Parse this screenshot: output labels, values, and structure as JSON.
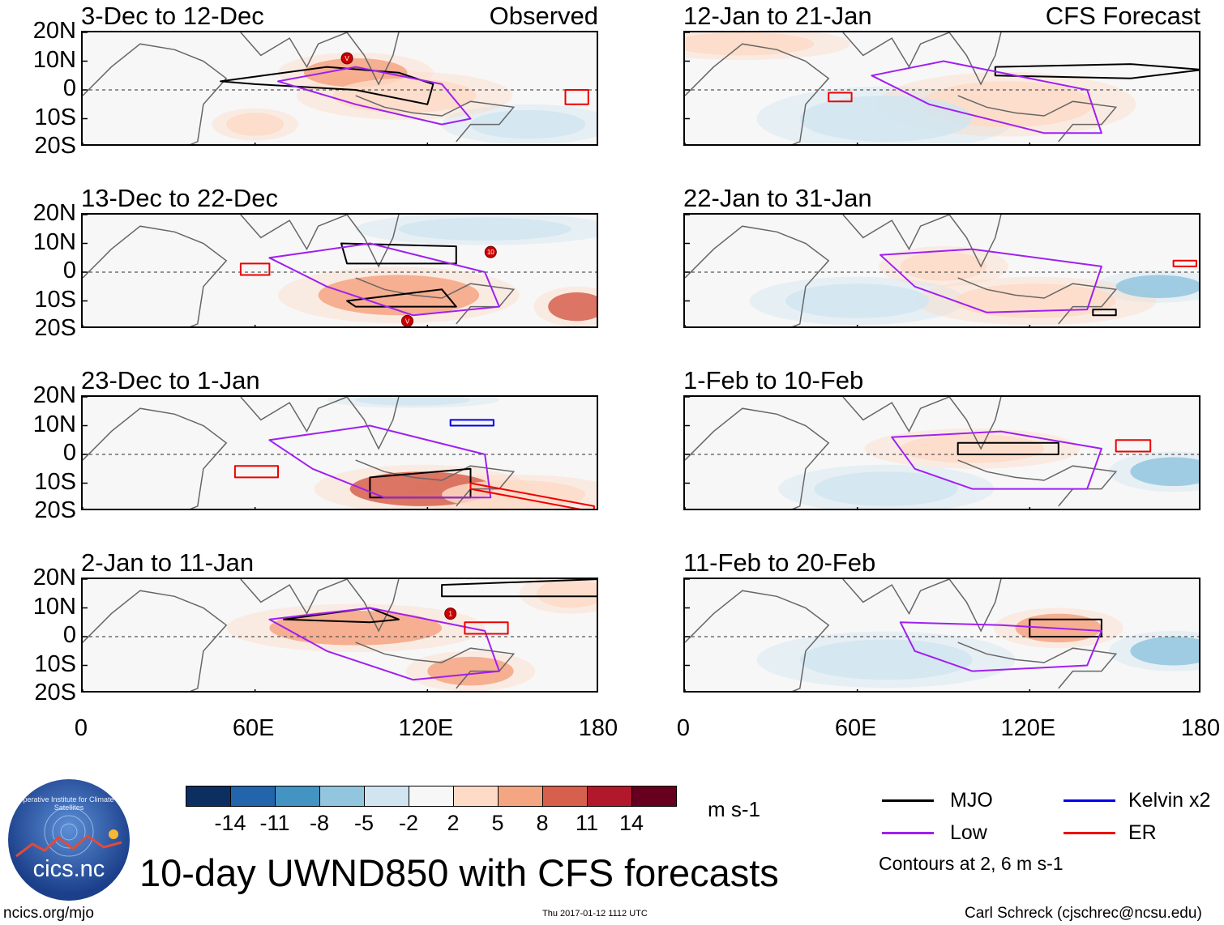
{
  "chart_data": [
    {
      "type": "heatmap",
      "title": "3-Dec to 12-Dec",
      "label": "Observed",
      "column": "left",
      "xlim": [
        0,
        180
      ],
      "ylim": [
        -20,
        20
      ],
      "xticks": [
        "0",
        "60E",
        "120E",
        "180"
      ],
      "yticks": [
        "20N",
        "10N",
        "0",
        "10S",
        "20S"
      ],
      "features": [
        {
          "kind": "positive",
          "lon": 95,
          "lat": 6,
          "rx": 18,
          "ry": 5,
          "v": 8
        },
        {
          "kind": "positive",
          "lon": 112,
          "lat": -2,
          "rx": 25,
          "ry": 6,
          "v": 5
        },
        {
          "kind": "negative",
          "lon": 155,
          "lat": -12,
          "rx": 20,
          "ry": 5,
          "v": -3
        },
        {
          "kind": "positive",
          "lon": 60,
          "lat": -12,
          "rx": 10,
          "ry": 4,
          "v": 3
        }
      ],
      "contours": [
        {
          "name": "MJO",
          "lon": [
            48,
            85,
            110,
            122,
            120,
            95,
            60,
            48
          ],
          "lat": [
            3,
            8,
            6,
            2,
            -5,
            0,
            2,
            3
          ]
        },
        {
          "name": "Low",
          "lon": [
            68,
            95,
            125,
            135,
            125,
            95,
            68
          ],
          "lat": [
            3,
            8,
            2,
            -10,
            -12,
            -5,
            3
          ]
        },
        {
          "name": "ER",
          "lon": [
            168,
            176,
            176,
            168
          ],
          "lat": [
            0,
            0,
            -5,
            -5
          ]
        }
      ],
      "storms": [
        {
          "lon": 92,
          "lat": 11,
          "label": "V"
        }
      ]
    },
    {
      "type": "heatmap",
      "title": "13-Dec to 22-Dec",
      "label": "",
      "column": "left",
      "xlim": [
        0,
        180
      ],
      "ylim": [
        -20,
        20
      ],
      "xticks": [
        "0",
        "60E",
        "120E",
        "180"
      ],
      "yticks": [
        "20N",
        "10N",
        "0",
        "10S",
        "20S"
      ],
      "features": [
        {
          "kind": "positive",
          "lon": 110,
          "lat": -8,
          "rx": 28,
          "ry": 7,
          "v": 8
        },
        {
          "kind": "positive",
          "lon": 172,
          "lat": -12,
          "rx": 10,
          "ry": 5,
          "v": 11
        },
        {
          "kind": "negative",
          "lon": 140,
          "lat": 15,
          "rx": 30,
          "ry": 4,
          "v": -3
        }
      ],
      "contours": [
        {
          "name": "MJO",
          "lon": [
            90,
            130,
            130,
            92,
            90
          ],
          "lat": [
            10,
            9,
            3,
            3,
            10
          ]
        },
        {
          "name": "MJO",
          "lon": [
            92,
            125,
            130,
            95,
            92
          ],
          "lat": [
            -10,
            -6,
            -12,
            -12,
            -10
          ]
        },
        {
          "name": "Low",
          "lon": [
            65,
            100,
            140,
            145,
            115,
            85,
            65
          ],
          "lat": [
            5,
            10,
            0,
            -12,
            -15,
            -5,
            5
          ]
        },
        {
          "name": "ER",
          "lon": [
            55,
            65,
            65,
            55
          ],
          "lat": [
            3,
            3,
            -1,
            -1
          ]
        }
      ],
      "storms": [
        {
          "lon": 142,
          "lat": 7,
          "label": "10"
        },
        {
          "lon": 113,
          "lat": -17,
          "label": "V"
        }
      ]
    },
    {
      "type": "heatmap",
      "title": "23-Dec to 1-Jan",
      "label": "",
      "column": "left",
      "xlim": [
        0,
        180
      ],
      "ylim": [
        -20,
        20
      ],
      "xticks": [
        "0",
        "60E",
        "120E",
        "180"
      ],
      "yticks": [
        "20N",
        "10N",
        "0",
        "10S",
        "20S"
      ],
      "features": [
        {
          "kind": "positive",
          "lon": 118,
          "lat": -12,
          "rx": 25,
          "ry": 6,
          "v": 11
        },
        {
          "kind": "positive",
          "lon": 150,
          "lat": -14,
          "rx": 25,
          "ry": 5,
          "v": 5
        },
        {
          "kind": "negative",
          "lon": 115,
          "lat": 19,
          "rx": 20,
          "ry": 2,
          "v": -3
        }
      ],
      "contours": [
        {
          "name": "MJO",
          "lon": [
            100,
            135,
            135,
            100
          ],
          "lat": [
            -8,
            -5,
            -15,
            -15
          ]
        },
        {
          "name": "Low",
          "lon": [
            65,
            100,
            140,
            142,
            105,
            80,
            65
          ],
          "lat": [
            5,
            10,
            0,
            -15,
            -15,
            -5,
            5
          ]
        },
        {
          "name": "Kelvin x2",
          "lon": [
            128,
            143,
            143,
            128
          ],
          "lat": [
            12,
            12,
            10,
            10
          ]
        },
        {
          "name": "ER",
          "lon": [
            135,
            178,
            178,
            135
          ],
          "lat": [
            -10,
            -18,
            -20,
            -12
          ]
        },
        {
          "name": "ER",
          "lon": [
            53,
            68,
            68,
            53
          ],
          "lat": [
            -4,
            -4,
            -8,
            -8
          ]
        }
      ],
      "storms": []
    },
    {
      "type": "heatmap",
      "title": "2-Jan to 11-Jan",
      "label": "",
      "column": "left",
      "xlim": [
        0,
        180
      ],
      "ylim": [
        -20,
        20
      ],
      "xticks": [
        "0",
        "60E",
        "120E",
        "180"
      ],
      "yticks": [
        "20N",
        "10N",
        "0",
        "10S",
        "20S"
      ],
      "features": [
        {
          "kind": "positive",
          "lon": 95,
          "lat": 3,
          "rx": 30,
          "ry": 6,
          "v": 8
        },
        {
          "kind": "positive",
          "lon": 135,
          "lat": -12,
          "rx": 15,
          "ry": 5,
          "v": 8
        },
        {
          "kind": "positive",
          "lon": 170,
          "lat": 15,
          "rx": 12,
          "ry": 5,
          "v": 5
        }
      ],
      "contours": [
        {
          "name": "MJO",
          "lon": [
            70,
            100,
            110,
            100,
            70
          ],
          "lat": [
            6,
            10,
            6,
            5,
            6
          ]
        },
        {
          "name": "MJO",
          "lon": [
            125,
            180,
            180,
            125
          ],
          "lat": [
            18,
            20,
            14,
            14
          ]
        },
        {
          "name": "Low",
          "lon": [
            65,
            100,
            140,
            145,
            115,
            85,
            65
          ],
          "lat": [
            6,
            10,
            2,
            -12,
            -15,
            -5,
            6
          ]
        },
        {
          "name": "ER",
          "lon": [
            133,
            148,
            148,
            133
          ],
          "lat": [
            5,
            5,
            1,
            1
          ]
        }
      ],
      "storms": [
        {
          "lon": 128,
          "lat": 8,
          "label": "1"
        }
      ]
    },
    {
      "type": "heatmap",
      "title": "12-Jan to 21-Jan",
      "label": "CFS Forecast",
      "column": "right",
      "xlim": [
        0,
        180
      ],
      "ylim": [
        -20,
        20
      ],
      "xticks": [
        "0",
        "60E",
        "120E",
        "180"
      ],
      "yticks": [
        "20N",
        "10N",
        "0",
        "10S",
        "20S"
      ],
      "features": [
        {
          "kind": "positive",
          "lon": 112,
          "lat": -5,
          "rx": 30,
          "ry": 8,
          "v": 5
        },
        {
          "kind": "negative",
          "lon": 70,
          "lat": -10,
          "rx": 30,
          "ry": 8,
          "v": -3
        },
        {
          "kind": "positive",
          "lon": 20,
          "lat": 16,
          "rx": 25,
          "ry": 4,
          "v": 5
        }
      ],
      "contours": [
        {
          "name": "MJO",
          "lon": [
            108,
            155,
            180,
            155,
            108
          ],
          "lat": [
            8,
            9,
            7,
            4,
            5
          ]
        },
        {
          "name": "Low",
          "lon": [
            65,
            90,
            140,
            145,
            125,
            85,
            65
          ],
          "lat": [
            5,
            10,
            0,
            -15,
            -15,
            -5,
            5
          ]
        },
        {
          "name": "ER",
          "lon": [
            50,
            58,
            58,
            50
          ],
          "lat": [
            -1,
            -1,
            -4,
            -4
          ]
        }
      ],
      "storms": []
    },
    {
      "type": "heatmap",
      "title": "22-Jan to 31-Jan",
      "label": "",
      "column": "right",
      "xlim": [
        0,
        180
      ],
      "ylim": [
        -20,
        20
      ],
      "xticks": [
        "0",
        "60E",
        "120E",
        "180"
      ],
      "yticks": [
        "20N",
        "10N",
        "0",
        "10S",
        "20S"
      ],
      "features": [
        {
          "kind": "positive",
          "lon": 90,
          "lat": 2,
          "rx": 15,
          "ry": 5,
          "v": 5
        },
        {
          "kind": "positive",
          "lon": 122,
          "lat": -10,
          "rx": 28,
          "ry": 6,
          "v": 5
        },
        {
          "kind": "negative",
          "lon": 165,
          "lat": -5,
          "rx": 15,
          "ry": 4,
          "v": -5
        },
        {
          "kind": "negative",
          "lon": 60,
          "lat": -10,
          "rx": 25,
          "ry": 6,
          "v": -3
        }
      ],
      "contours": [
        {
          "name": "Low",
          "lon": [
            68,
            100,
            145,
            140,
            105,
            80,
            68
          ],
          "lat": [
            6,
            8,
            2,
            -13,
            -14,
            -5,
            6
          ]
        },
        {
          "name": "MJO",
          "lon": [
            142,
            150,
            150,
            142
          ],
          "lat": [
            -13,
            -13,
            -15,
            -15
          ]
        },
        {
          "name": "ER",
          "lon": [
            170,
            178,
            178,
            170
          ],
          "lat": [
            4,
            4,
            2,
            2
          ]
        }
      ],
      "storms": []
    },
    {
      "type": "heatmap",
      "title": "1-Feb to 10-Feb",
      "label": "",
      "column": "right",
      "xlim": [
        0,
        180
      ],
      "ylim": [
        -20,
        20
      ],
      "xticks": [
        "0",
        "60E",
        "120E",
        "180"
      ],
      "yticks": [
        "20N",
        "10N",
        "0",
        "10S",
        "20S"
      ],
      "features": [
        {
          "kind": "positive",
          "lon": 100,
          "lat": 2,
          "rx": 25,
          "ry": 5,
          "v": 5
        },
        {
          "kind": "negative",
          "lon": 170,
          "lat": -6,
          "rx": 15,
          "ry": 5,
          "v": -5
        },
        {
          "kind": "negative",
          "lon": 70,
          "lat": -12,
          "rx": 25,
          "ry": 6,
          "v": -3
        }
      ],
      "contours": [
        {
          "name": "MJO",
          "lon": [
            95,
            130,
            130,
            95
          ],
          "lat": [
            4,
            4,
            0,
            0
          ]
        },
        {
          "name": "Low",
          "lon": [
            72,
            110,
            145,
            140,
            100,
            80,
            72
          ],
          "lat": [
            6,
            8,
            2,
            -12,
            -12,
            -5,
            6
          ]
        },
        {
          "name": "ER",
          "lon": [
            150,
            162,
            162,
            150
          ],
          "lat": [
            5,
            5,
            1,
            1
          ]
        }
      ],
      "storms": []
    },
    {
      "type": "heatmap",
      "title": "11-Feb to 20-Feb",
      "label": "",
      "column": "right",
      "xlim": [
        0,
        180
      ],
      "ylim": [
        -20,
        20
      ],
      "xticks": [
        "0",
        "60E",
        "120E",
        "180"
      ],
      "yticks": [
        "20N",
        "10N",
        "0",
        "10S",
        "20S"
      ],
      "features": [
        {
          "kind": "positive",
          "lon": 130,
          "lat": 3,
          "rx": 15,
          "ry": 5,
          "v": 8
        },
        {
          "kind": "negative",
          "lon": 170,
          "lat": -5,
          "rx": 15,
          "ry": 5,
          "v": -5
        },
        {
          "kind": "negative",
          "lon": 70,
          "lat": -8,
          "rx": 30,
          "ry": 7,
          "v": -3
        }
      ],
      "contours": [
        {
          "name": "MJO",
          "lon": [
            120,
            145,
            145,
            120
          ],
          "lat": [
            6,
            6,
            0,
            0
          ]
        },
        {
          "name": "Low",
          "lon": [
            75,
            110,
            145,
            140,
            100,
            80,
            75
          ],
          "lat": [
            5,
            4,
            2,
            -10,
            -12,
            -5,
            5
          ]
        }
      ],
      "storms": []
    }
  ],
  "colorbar": {
    "colors": [
      "#0b2f60",
      "#2365ac",
      "#4393c3",
      "#92c5de",
      "#d1e5f0",
      "#f7f7f7",
      "#fddbc7",
      "#f4a582",
      "#d6604d",
      "#b2182b",
      "#67001f"
    ],
    "labels": [
      "-14",
      "-11",
      "-8",
      "-5",
      "-2",
      "2",
      "5",
      "8",
      "11",
      "14"
    ],
    "units": "m s-1"
  },
  "legend": {
    "items": [
      {
        "name": "MJO",
        "color": "#000000"
      },
      {
        "name": "Kelvin x2",
        "color": "#0000ee"
      },
      {
        "name": "Low",
        "color": "#a020f0"
      },
      {
        "name": "ER",
        "color": "#ee0000"
      }
    ],
    "note": "Contours at 2, 6 m s-1"
  },
  "main_title": "10-day UWND850 with CFS forecasts",
  "footer": {
    "left": "ncics.org/mjo",
    "center": "Thu 2017-01-12 1112 UTC",
    "right": "Carl Schreck (cjschrec@ncsu.edu)"
  },
  "logo": {
    "text": "cics.nc",
    "org": "Cooperative Institute for Climate and Satellites"
  }
}
